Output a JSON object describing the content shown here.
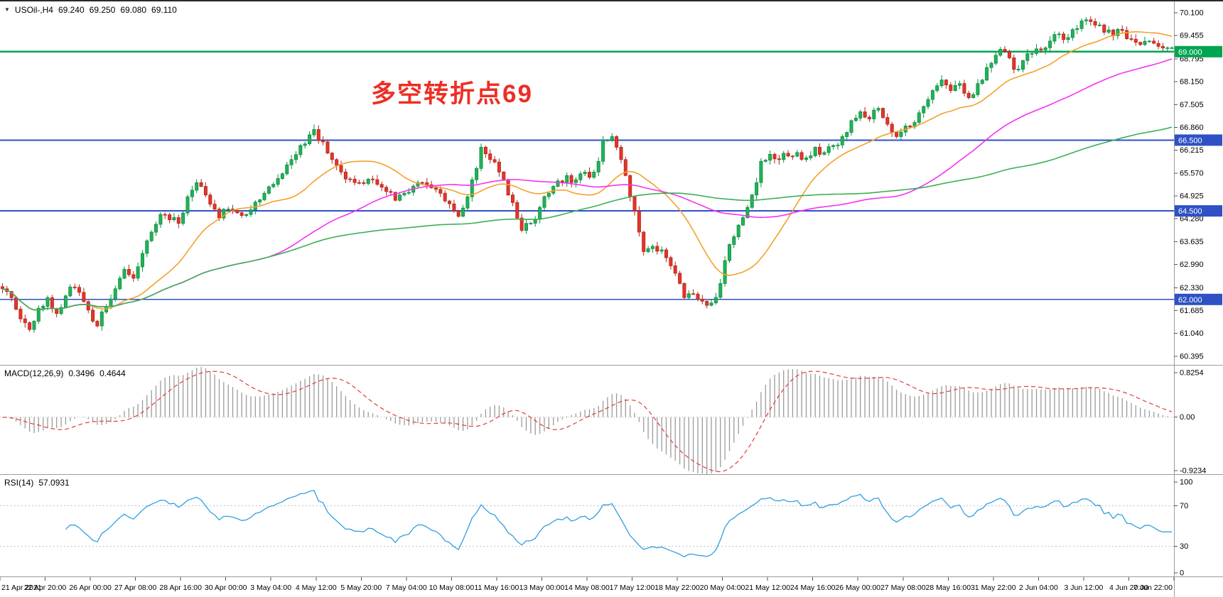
{
  "window": {
    "symbol_period": "USOil-,H4",
    "ohlc_current": {
      "open": "69.240",
      "high": "69.250",
      "low": "69.080",
      "close": "69.110"
    }
  },
  "annotation": {
    "text": "多空转折点69",
    "color": "#ee2e24"
  },
  "colors": {
    "up": "#21b257",
    "up_border": "#0f8f43",
    "down": "#e63429",
    "down_border": "#b1271d",
    "separator": "#9c9c9c",
    "axis_text": "#000000",
    "bg": "#ffffff"
  },
  "chart_data": {
    "type": "candlestick",
    "symbol": "USOil-",
    "timeframe": "H4",
    "bars": 260,
    "title": "USOil-,H4 69.240 69.250 69.080 69.110",
    "price_axis": {
      "labels": [
        "70.100",
        "69.455",
        "68.795",
        "68.150",
        "67.505",
        "66.860",
        "66.215",
        "65.570",
        "64.925",
        "64.280",
        "63.635",
        "62.990",
        "62.330",
        "61.685",
        "61.040",
        "60.395"
      ],
      "view_max": 70.42,
      "view_min": 60.15
    },
    "horizontal_levels": [
      {
        "price": 69.0,
        "label": "69.000",
        "color": "#00a551"
      },
      {
        "price": 66.5,
        "label": "66.500",
        "color": "#2e51c5"
      },
      {
        "price": 64.5,
        "label": "64.500",
        "color": "#2e51c5"
      },
      {
        "price": 62.0,
        "label": "62.000",
        "color": "#2e51c5"
      }
    ],
    "moving_averages": [
      {
        "period": 20,
        "color": "#f5a028"
      },
      {
        "period": 60,
        "color": "#f531f5"
      },
      {
        "period": 120,
        "color": "#3cb054"
      }
    ],
    "price_waypoints": [
      [
        0,
        62.3
      ],
      [
        2,
        62.05
      ],
      [
        4,
        61.45
      ],
      [
        6,
        61.15
      ],
      [
        8,
        61.75
      ],
      [
        10,
        62.05
      ],
      [
        12,
        61.6
      ],
      [
        14,
        62.1
      ],
      [
        15,
        62.35
      ],
      [
        17,
        62.2
      ],
      [
        19,
        61.7
      ],
      [
        21,
        61.25
      ],
      [
        23,
        61.8
      ],
      [
        25,
        62.3
      ],
      [
        27,
        62.85
      ],
      [
        29,
        62.6
      ],
      [
        31,
        63.3
      ],
      [
        33,
        63.9
      ],
      [
        35,
        64.4
      ],
      [
        37,
        64.25
      ],
      [
        39,
        64.15
      ],
      [
        41,
        64.9
      ],
      [
        43,
        65.3
      ],
      [
        45,
        64.95
      ],
      [
        47,
        64.55
      ],
      [
        48,
        64.3
      ],
      [
        50,
        64.55
      ],
      [
        52,
        64.45
      ],
      [
        54,
        64.4
      ],
      [
        56,
        64.75
      ],
      [
        58,
        65.0
      ],
      [
        60,
        65.25
      ],
      [
        62,
        65.55
      ],
      [
        64,
        65.95
      ],
      [
        66,
        66.35
      ],
      [
        68,
        66.65
      ],
      [
        69,
        66.8
      ],
      [
        71,
        66.45
      ],
      [
        73,
        65.95
      ],
      [
        75,
        65.6
      ],
      [
        77,
        65.4
      ],
      [
        79,
        65.3
      ],
      [
        81,
        65.4
      ],
      [
        83,
        65.25
      ],
      [
        85,
        65.05
      ],
      [
        87,
        64.8
      ],
      [
        89,
        65.0
      ],
      [
        91,
        65.2
      ],
      [
        93,
        65.3
      ],
      [
        95,
        65.15
      ],
      [
        97,
        65.0
      ],
      [
        99,
        64.7
      ],
      [
        101,
        64.35
      ],
      [
        103,
        64.9
      ],
      [
        105,
        65.7
      ],
      [
        106,
        66.3
      ],
      [
        108,
        65.95
      ],
      [
        110,
        65.6
      ],
      [
        112,
        64.95
      ],
      [
        114,
        64.3
      ],
      [
        115,
        63.95
      ],
      [
        117,
        64.15
      ],
      [
        119,
        64.6
      ],
      [
        121,
        65.0
      ],
      [
        123,
        65.35
      ],
      [
        125,
        65.5
      ],
      [
        126,
        65.3
      ],
      [
        128,
        65.55
      ],
      [
        130,
        65.45
      ],
      [
        132,
        65.9
      ],
      [
        133,
        66.5
      ],
      [
        135,
        66.6
      ],
      [
        136,
        66.3
      ],
      [
        137,
        65.95
      ],
      [
        138,
        65.5
      ],
      [
        139,
        64.9
      ],
      [
        141,
        63.9
      ],
      [
        142,
        63.35
      ],
      [
        144,
        63.5
      ],
      [
        146,
        63.4
      ],
      [
        148,
        62.95
      ],
      [
        150,
        62.45
      ],
      [
        151,
        62.05
      ],
      [
        153,
        62.15
      ],
      [
        155,
        61.95
      ],
      [
        157,
        61.9
      ],
      [
        159,
        62.45
      ],
      [
        161,
        63.55
      ],
      [
        163,
        64.1
      ],
      [
        165,
        64.6
      ],
      [
        167,
        65.3
      ],
      [
        168,
        65.9
      ],
      [
        170,
        66.1
      ],
      [
        172,
        65.95
      ],
      [
        174,
        66.05
      ],
      [
        176,
        66.15
      ],
      [
        178,
        66.0
      ],
      [
        180,
        66.3
      ],
      [
        182,
        66.15
      ],
      [
        184,
        66.35
      ],
      [
        186,
        66.6
      ],
      [
        188,
        67.05
      ],
      [
        190,
        67.3
      ],
      [
        192,
        67.1
      ],
      [
        194,
        67.4
      ],
      [
        196,
        66.95
      ],
      [
        198,
        66.6
      ],
      [
        200,
        66.9
      ],
      [
        202,
        67.0
      ],
      [
        204,
        67.45
      ],
      [
        206,
        67.9
      ],
      [
        208,
        68.2
      ],
      [
        210,
        67.9
      ],
      [
        212,
        68.1
      ],
      [
        214,
        67.7
      ],
      [
        216,
        68.1
      ],
      [
        218,
        68.55
      ],
      [
        220,
        68.9
      ],
      [
        222,
        69.0
      ],
      [
        224,
        68.5
      ],
      [
        226,
        68.75
      ],
      [
        228,
        68.95
      ],
      [
        230,
        69.05
      ],
      [
        232,
        69.3
      ],
      [
        234,
        69.5
      ],
      [
        236,
        69.4
      ],
      [
        238,
        69.65
      ],
      [
        240,
        69.9
      ],
      [
        242,
        69.75
      ],
      [
        244,
        69.55
      ],
      [
        246,
        69.45
      ],
      [
        248,
        69.6
      ],
      [
        250,
        69.35
      ],
      [
        252,
        69.2
      ],
      [
        254,
        69.3
      ],
      [
        256,
        69.15
      ],
      [
        258,
        69.11
      ]
    ],
    "macd": {
      "label": "MACD(12,26,9)",
      "value_main": "0.3496",
      "value_signal": "0.4644",
      "fast": 12,
      "slow": 26,
      "signal": 9,
      "axis_labels": [
        "0.8254",
        "0.00",
        "-0.9234"
      ],
      "range_max": 0.8254,
      "range_min": -0.9234,
      "hist_color": "#9b9b9b",
      "signal_color": "#e23b3b"
    },
    "rsi": {
      "label": "RSI(14)",
      "value": "57.0931",
      "period": 14,
      "axis_labels": [
        "100",
        "70",
        "30",
        "0"
      ],
      "levels": [
        70,
        30
      ],
      "color": "#2f9fe0"
    },
    "time_axis_labels": [
      "21 Apr 2021",
      "22 Apr 20:00",
      "26 Apr 00:00",
      "27 Apr 08:00",
      "28 Apr 16:00",
      "30 Apr 00:00",
      "3 May 04:00",
      "4 May 12:00",
      "5 May 20:00",
      "7 May 04:00",
      "10 May 08:00",
      "11 May 16:00",
      "13 May 00:00",
      "14 May 08:00",
      "17 May 12:00",
      "18 May 22:00",
      "20 May 04:00",
      "21 May 12:00",
      "24 May 16:00",
      "26 May 00:00",
      "27 May 08:00",
      "28 May 16:00",
      "31 May 22:00",
      "2 Jun 04:00",
      "3 Jun 12:00",
      "4 Jun 20:00",
      "7 Jun 22:00"
    ]
  }
}
